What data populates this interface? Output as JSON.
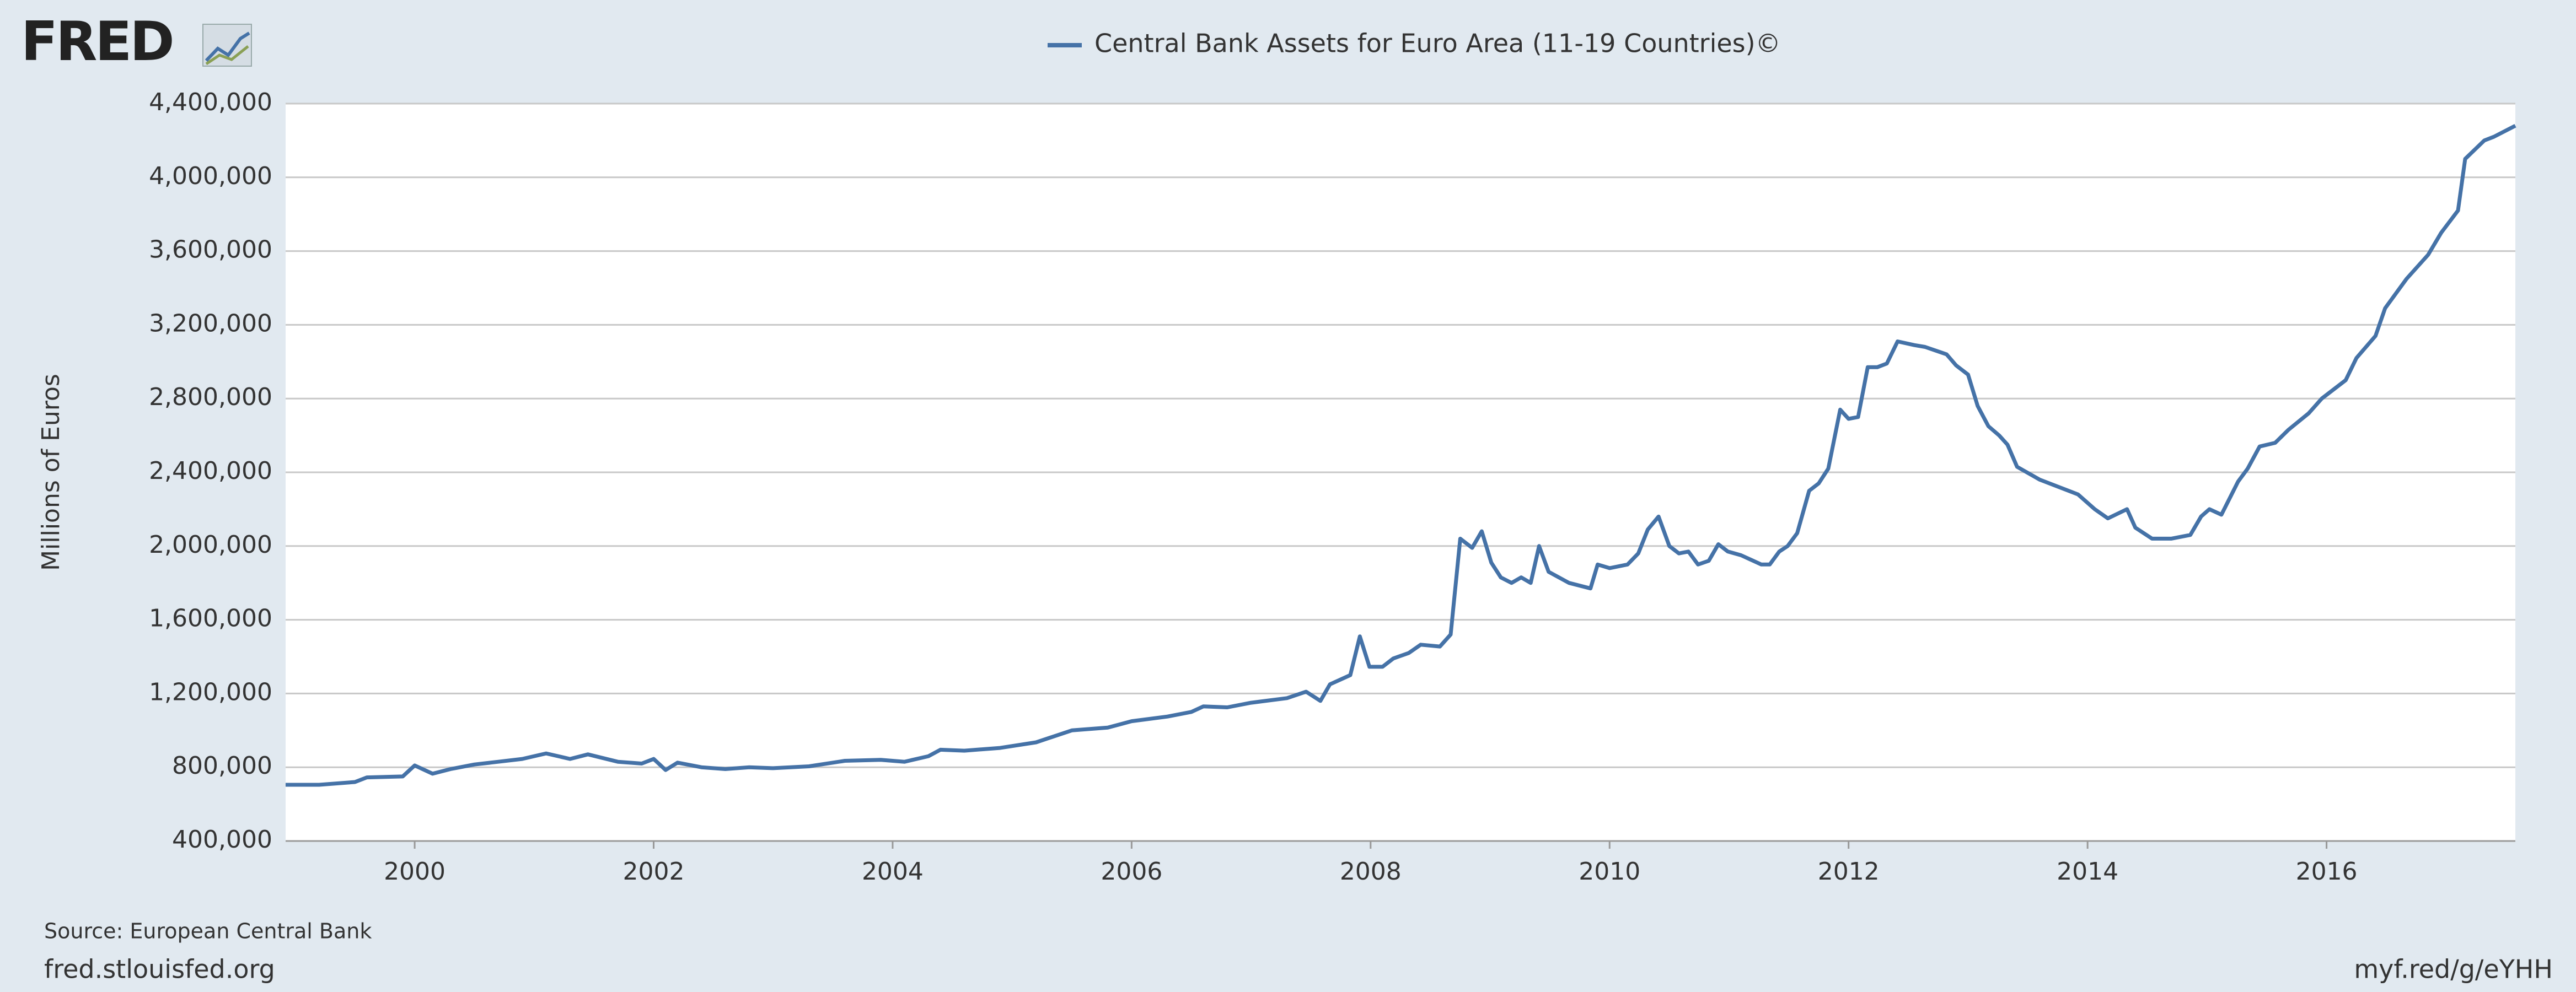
{
  "logo": "FRED",
  "footer": {
    "source": "Source: European Central Bank",
    "site": "fred.stlouisfed.org",
    "short_url": "myf.red/g/eYHH"
  },
  "chart_data": {
    "type": "line",
    "ylabel": "Millions of Euros",
    "grid": true,
    "xlim": [
      1998.92,
      2017.58
    ],
    "xticks": [
      2000,
      2002,
      2004,
      2006,
      2008,
      2010,
      2012,
      2014,
      2016
    ],
    "ylim": [
      400000,
      4400000
    ],
    "yticks": [
      {
        "value": 400000,
        "label": "400,000"
      },
      {
        "value": 800000,
        "label": "800,000"
      },
      {
        "value": 1200000,
        "label": "1,200,000"
      },
      {
        "value": 1600000,
        "label": "1,600,000"
      },
      {
        "value": 2000000,
        "label": "2,000,000"
      },
      {
        "value": 2400000,
        "label": "2,400,000"
      },
      {
        "value": 2800000,
        "label": "2,800,000"
      },
      {
        "value": 3200000,
        "label": "3,200,000"
      },
      {
        "value": 3600000,
        "label": "3,600,000"
      },
      {
        "value": 4000000,
        "label": "4,000,000"
      },
      {
        "value": 4400000,
        "label": "4,400,000"
      }
    ],
    "x": [
      1998.92,
      1999.2,
      1999.5,
      1999.6,
      1999.9,
      2000.0,
      2000.15,
      2000.3,
      2000.5,
      2000.7,
      2000.9,
      2001.1,
      2001.3,
      2001.45,
      2001.7,
      2001.9,
      2002.0,
      2002.1,
      2002.2,
      2002.4,
      2002.6,
      2002.8,
      2003.0,
      2003.3,
      2003.6,
      2003.9,
      2004.1,
      2004.3,
      2004.4,
      2004.6,
      2004.9,
      2005.2,
      2005.5,
      2005.8,
      2006.0,
      2006.3,
      2006.5,
      2006.6,
      2006.8,
      2007.0,
      2007.3,
      2007.46,
      2007.58,
      2007.66,
      2007.83,
      2007.91,
      2007.99,
      2008.1,
      2008.19,
      2008.32,
      2008.42,
      2008.58,
      2008.67,
      2008.75,
      2008.85,
      2008.93,
      2009.01,
      2009.09,
      2009.18,
      2009.26,
      2009.34,
      2009.41,
      2009.49,
      2009.66,
      2009.84,
      2009.9,
      2010.0,
      2010.15,
      2010.24,
      2010.32,
      2010.41,
      2010.5,
      2010.58,
      2010.66,
      2010.74,
      2010.83,
      2010.91,
      2010.99,
      2011.1,
      2011.27,
      2011.34,
      2011.42,
      2011.49,
      2011.57,
      2011.67,
      2011.75,
      2011.83,
      2011.93,
      2012.0,
      2012.08,
      2012.16,
      2012.24,
      2012.32,
      2012.41,
      2012.55,
      2012.64,
      2012.82,
      2012.9,
      2013.0,
      2013.08,
      2013.17,
      2013.26,
      2013.33,
      2013.41,
      2013.6,
      2013.92,
      2014.06,
      2014.17,
      2014.33,
      2014.4,
      2014.54,
      2014.7,
      2014.86,
      2014.95,
      2015.02,
      2015.12,
      2015.26,
      2015.34,
      2015.44,
      2015.57,
      2015.68,
      2015.85,
      2015.96,
      2016.16,
      2016.25,
      2016.41,
      2016.49,
      2016.67,
      2016.85,
      2016.96,
      2017.1,
      2017.16,
      2017.32,
      2017.4,
      2017.58
    ],
    "series": [
      {
        "name": "Central Bank Assets for Euro Area (11-19 Countries)©",
        "color": "#4572a7",
        "values": [
          705000,
          705000,
          720000,
          745000,
          750000,
          810000,
          765000,
          790000,
          815000,
          830000,
          845000,
          875000,
          845000,
          870000,
          830000,
          820000,
          845000,
          785000,
          825000,
          800000,
          790000,
          800000,
          795000,
          805000,
          835000,
          840000,
          830000,
          860000,
          895000,
          890000,
          905000,
          935000,
          1000000,
          1015000,
          1050000,
          1075000,
          1100000,
          1130000,
          1125000,
          1150000,
          1175000,
          1210000,
          1160000,
          1250000,
          1300000,
          1510000,
          1345000,
          1345000,
          1390000,
          1420000,
          1465000,
          1455000,
          1520000,
          2040000,
          1990000,
          2080000,
          1910000,
          1830000,
          1800000,
          1830000,
          1800000,
          2000000,
          1860000,
          1800000,
          1770000,
          1900000,
          1880000,
          1900000,
          1960000,
          2090000,
          2160000,
          2000000,
          1960000,
          1970000,
          1900000,
          1920000,
          2010000,
          1970000,
          1950000,
          1900000,
          1900000,
          1970000,
          2000000,
          2070000,
          2300000,
          2340000,
          2420000,
          2740000,
          2690000,
          2700000,
          2970000,
          2970000,
          2990000,
          3110000,
          3090000,
          3080000,
          3040000,
          2980000,
          2930000,
          2760000,
          2650000,
          2600000,
          2550000,
          2430000,
          2360000,
          2280000,
          2200000,
          2150000,
          2200000,
          2100000,
          2040000,
          2040000,
          2060000,
          2160000,
          2200000,
          2170000,
          2350000,
          2420000,
          2540000,
          2560000,
          2630000,
          2720000,
          2800000,
          2900000,
          3020000,
          3140000,
          3290000,
          3450000,
          3580000,
          3700000,
          3820000,
          4100000,
          4200000,
          4220000,
          4280000
        ]
      }
    ]
  }
}
